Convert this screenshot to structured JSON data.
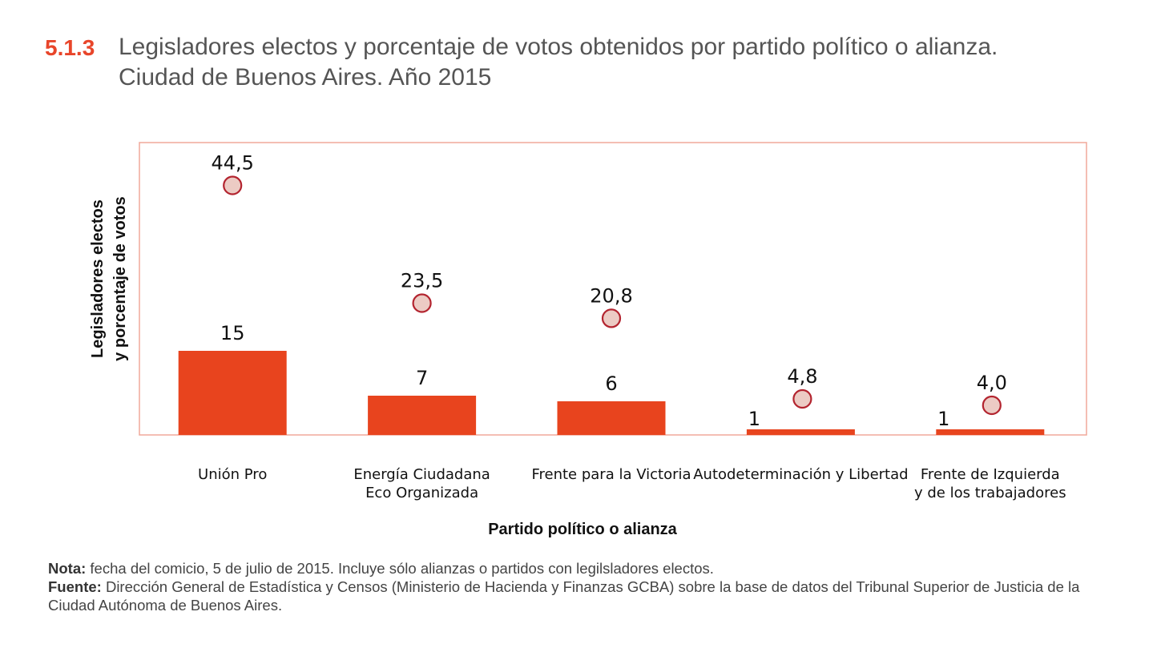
{
  "title": {
    "number": "5.1.3",
    "line1": "Legisladores electos y porcentaje de votos obtenidos por partido político o alianza.",
    "line2": "Ciudad de Buenos Aires. Año 2015"
  },
  "colors": {
    "bar": "#e8441e",
    "marker_fill": "#eccbc4",
    "marker_stroke": "#b3242f",
    "frame": "#f0a99a",
    "accent": "#e8452a"
  },
  "chart_data": {
    "type": "bar",
    "title": "Legisladores electos y porcentaje de votos obtenidos por partido político o alianza. Ciudad de Buenos Aires. Año 2015",
    "ylabel_line1": "Legisladores  electos",
    "ylabel_line2": "y porcentaje de votos",
    "xlabel": "Partido político o alianza",
    "ylim": [
      0,
      50
    ],
    "categories": [
      [
        "Unión Pro"
      ],
      [
        "Energía Ciudadana",
        "Eco Organizada"
      ],
      [
        "Frente para la Victoria"
      ],
      [
        "Autodeterminación y Libertad"
      ],
      [
        "Frente de Izquierda",
        "y de los trabajadores"
      ]
    ],
    "series": [
      {
        "name": "Legisladores electos",
        "kind": "bar",
        "values": [
          15,
          7,
          6,
          1,
          1
        ],
        "labels": [
          "15",
          "7",
          "6",
          "1",
          "1"
        ]
      },
      {
        "name": "Porcentaje de votos",
        "kind": "marker",
        "values": [
          44.5,
          23.5,
          20.8,
          4.8,
          4.0
        ],
        "labels": [
          "44,5",
          "23,5",
          "20,8",
          "4,8",
          "4,0"
        ]
      }
    ]
  },
  "notes": {
    "nota_label": "Nota:",
    "nota_text": " fecha del comicio, 5 de julio de 2015. Incluye sólo alianzas o partidos con legilsladores electos.",
    "fuente_label": "Fuente:",
    "fuente_text": " Dirección General de Estadística y Censos (Ministerio de Hacienda y Finanzas GCBA) sobre la base de datos del Tribunal Superior de Justicia de la Ciudad Autónoma de Buenos Aires."
  }
}
